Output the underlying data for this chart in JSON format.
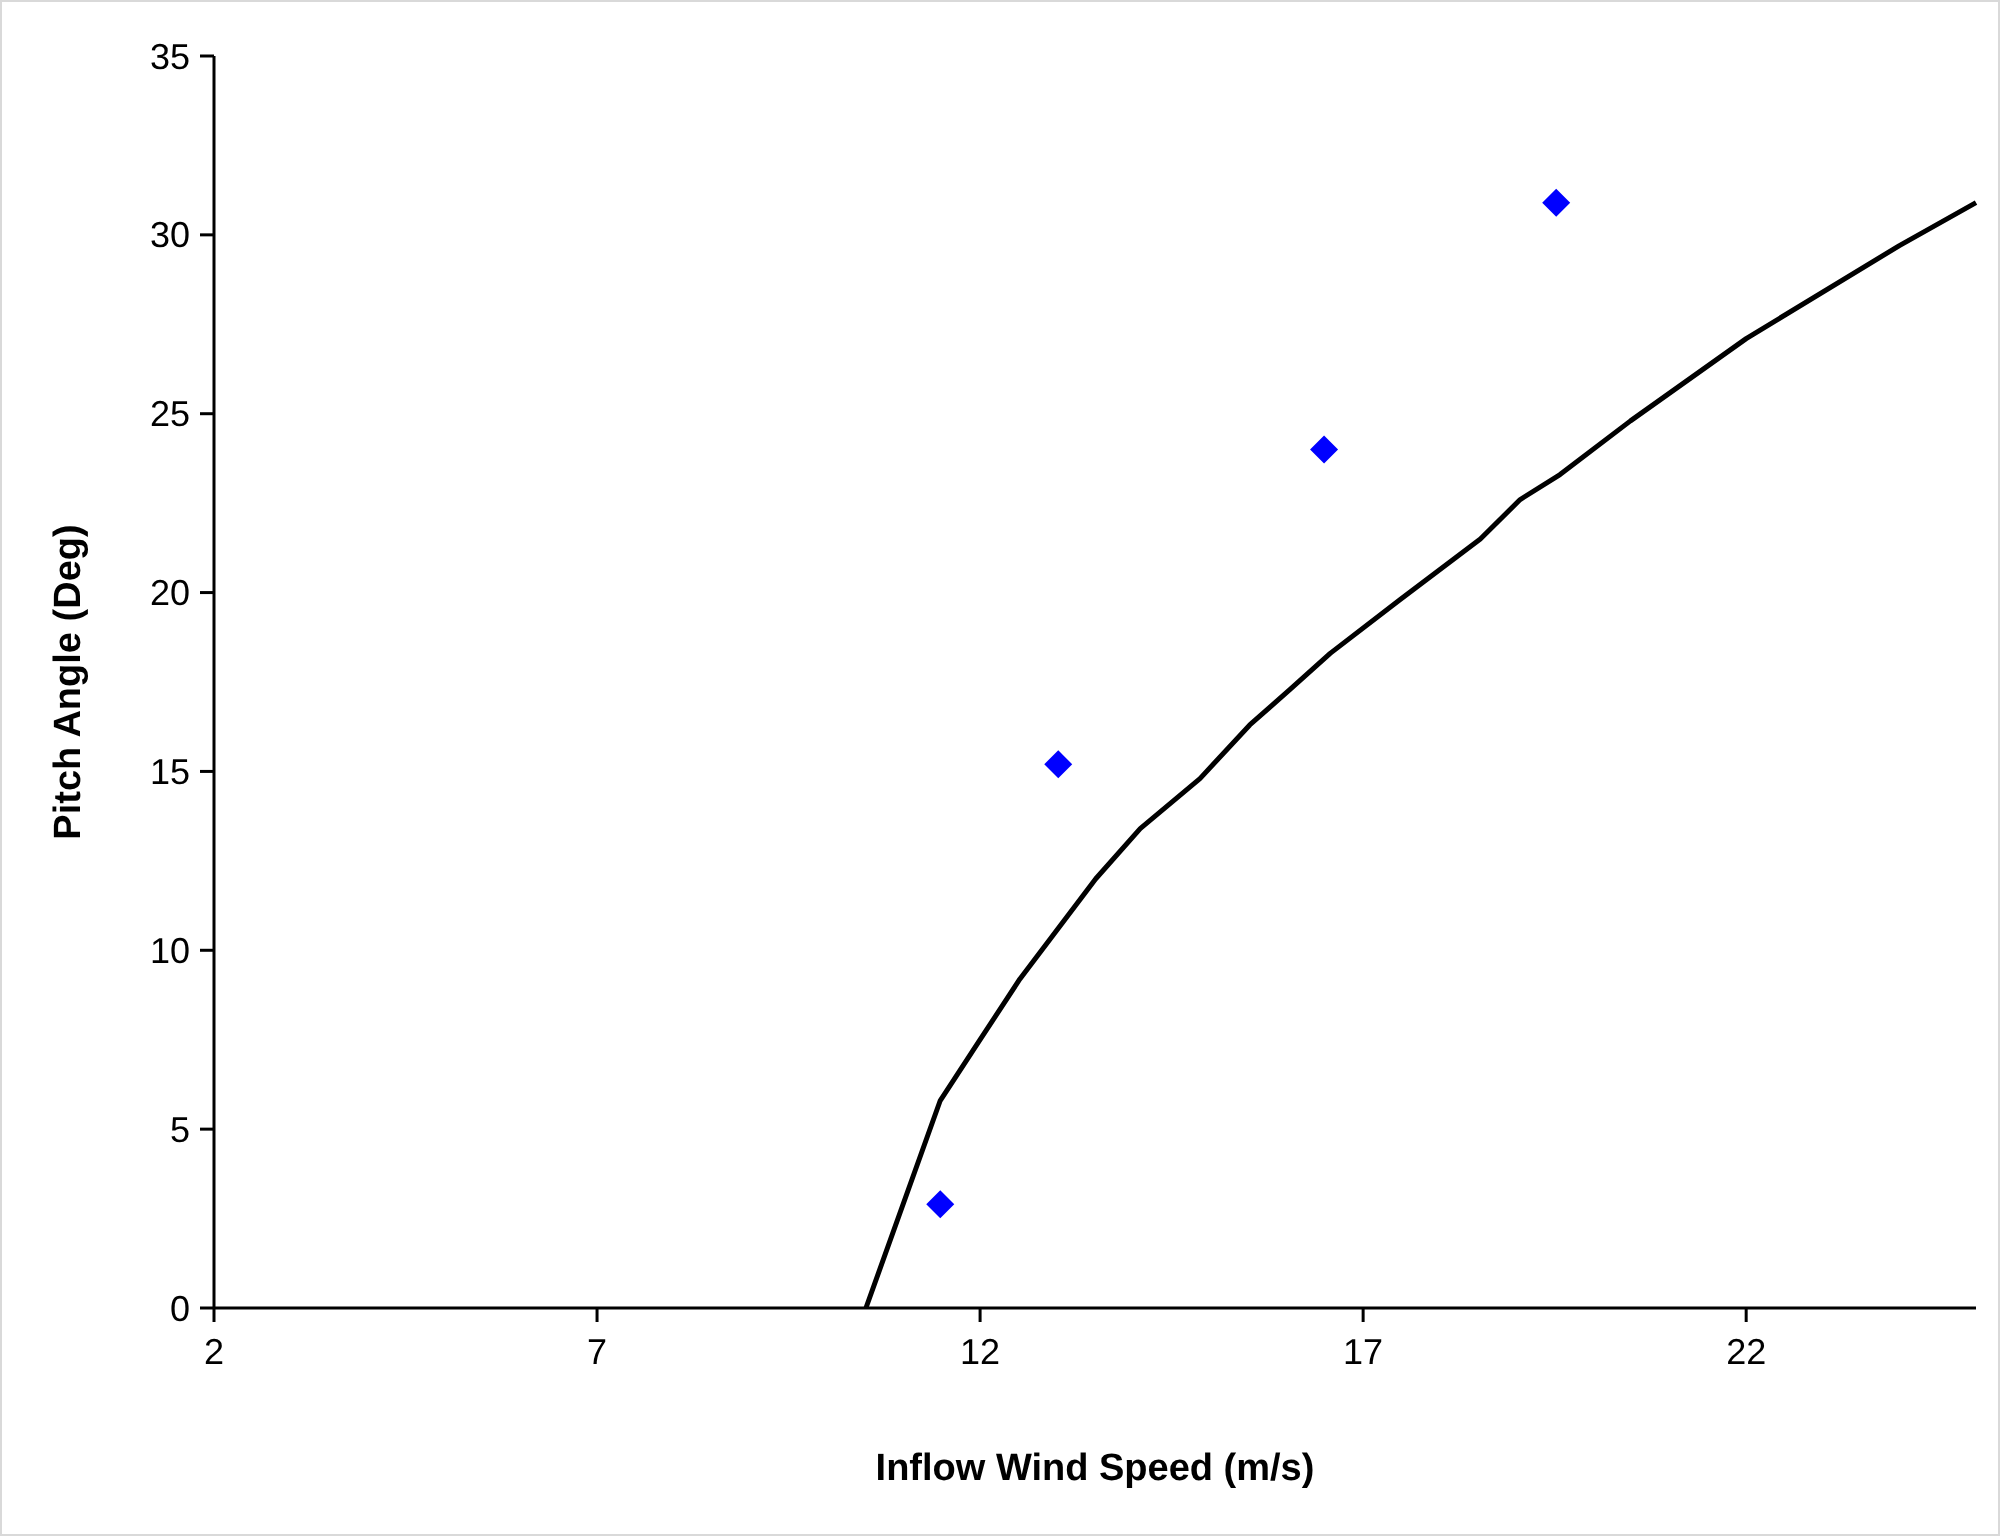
{
  "chart_data": {
    "type": "scatter",
    "xlabel": "Inflow Wind Speed (m/s)",
    "ylabel": "Pitch Angle (Deg)",
    "xlim": [
      2,
      25
    ],
    "xticks": [
      2,
      7,
      12,
      17,
      22
    ],
    "ylim": [
      0,
      35
    ],
    "yticks": [
      0,
      5,
      10,
      15,
      20,
      25,
      30,
      35
    ],
    "grid": false,
    "series": [
      {
        "type": "line",
        "color": "#000000",
        "line_style": "solid",
        "marker": "none",
        "x": [
          10.51,
          11.48,
          12,
          12.52,
          13.51,
          14.09,
          14.87,
          15.52,
          16.05,
          16.57,
          17.48,
          18.53,
          19.05,
          19.57,
          20.49,
          22,
          24,
          25
        ],
        "values": [
          0,
          5.8,
          7.5,
          9.2,
          12,
          13.4,
          14.8,
          16.3,
          17.3,
          18.3,
          19.8,
          21.5,
          22.6,
          23.3,
          24.8,
          27.1,
          29.7,
          30.9
        ]
      },
      {
        "color": "#0000ff",
        "marker": "diamond",
        "x": [
          11.48,
          13.02,
          16.49,
          19.52
        ],
        "values": [
          2.9,
          15.2,
          24,
          30.9
        ]
      }
    ]
  }
}
